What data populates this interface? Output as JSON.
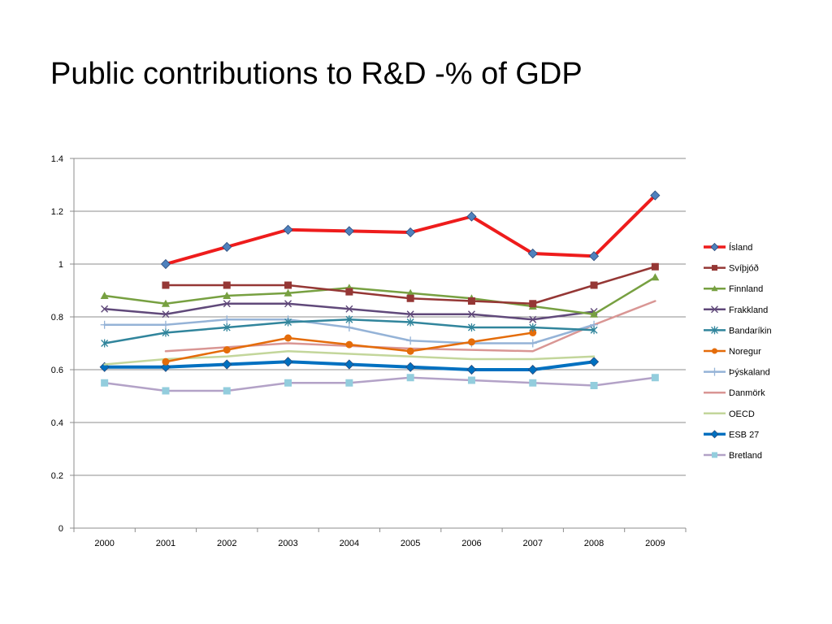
{
  "title": "Public contributions to R&D -% of GDP",
  "chart_data": {
    "type": "line",
    "title": "",
    "xlabel": "",
    "ylabel": "",
    "categories": [
      "2000",
      "2001",
      "2002",
      "2003",
      "2004",
      "2005",
      "2006",
      "2007",
      "2008",
      "2009"
    ],
    "ylim": [
      0,
      1.4
    ],
    "yticks": [
      "0",
      "0.2",
      "0.4",
      "0.6",
      "0.8",
      "1",
      "1.2",
      "1.4"
    ],
    "grid": "horizontal",
    "legend_position": "right",
    "series": [
      {
        "name": "Ísland",
        "color": "#ee1c1c",
        "marker": "diamond",
        "marker_color": "#4f81bd",
        "width": 4,
        "values": [
          null,
          1.0,
          1.065,
          1.13,
          1.125,
          1.12,
          1.18,
          1.04,
          1.03,
          1.26
        ]
      },
      {
        "name": "Svíþjóð",
        "color": "#953735",
        "marker": "square",
        "marker_color": "#953735",
        "width": 2.5,
        "values": [
          null,
          0.92,
          0.92,
          0.92,
          0.895,
          0.87,
          0.86,
          0.85,
          0.92,
          0.99
        ]
      },
      {
        "name": "Finnland",
        "color": "#77a041",
        "marker": "triangle",
        "marker_color": "#77a041",
        "width": 2.5,
        "values": [
          0.88,
          0.85,
          0.88,
          0.89,
          0.91,
          0.89,
          0.87,
          0.84,
          0.81,
          0.95
        ]
      },
      {
        "name": "Frakkland",
        "color": "#60497a",
        "marker": "x",
        "marker_color": "#60497a",
        "width": 2.5,
        "values": [
          0.83,
          0.81,
          0.85,
          0.85,
          0.83,
          0.81,
          0.81,
          0.79,
          0.82,
          null
        ]
      },
      {
        "name": "Bandaríkin",
        "color": "#31859c",
        "marker": "star",
        "marker_color": "#31859c",
        "width": 2.5,
        "values": [
          0.7,
          0.74,
          0.76,
          0.78,
          0.79,
          0.78,
          0.76,
          0.76,
          0.75,
          null
        ]
      },
      {
        "name": "Noregur",
        "color": "#e46c0a",
        "marker": "circle",
        "marker_color": "#e46c0a",
        "width": 2.5,
        "values": [
          null,
          0.63,
          0.675,
          0.72,
          0.695,
          0.67,
          0.705,
          0.74,
          null,
          null
        ]
      },
      {
        "name": "Þýskaland",
        "color": "#95b3d7",
        "marker": "plus",
        "marker_color": "#95b3d7",
        "width": 2.5,
        "values": [
          0.77,
          0.77,
          0.79,
          0.79,
          0.76,
          0.71,
          0.7,
          0.7,
          0.77,
          null
        ]
      },
      {
        "name": "Danmörk",
        "color": "#d99694",
        "marker": "none",
        "marker_color": "#d99694",
        "width": 2.5,
        "values": [
          null,
          0.67,
          0.685,
          0.7,
          0.69,
          0.68,
          0.675,
          0.67,
          0.77,
          0.86
        ]
      },
      {
        "name": "OECD",
        "color": "#c3d69b",
        "marker": "none",
        "marker_color": "#c3d69b",
        "width": 2.5,
        "values": [
          0.62,
          0.64,
          0.65,
          0.67,
          0.66,
          0.65,
          0.64,
          0.64,
          0.65,
          null
        ]
      },
      {
        "name": "ESB 27",
        "color": "#0070c0",
        "marker": "diamond",
        "marker_color": "#0070c0",
        "width": 4,
        "values": [
          0.61,
          0.61,
          0.62,
          0.63,
          0.62,
          0.61,
          0.6,
          0.6,
          0.63,
          null
        ]
      },
      {
        "name": "Bretland",
        "color": "#b3a2c7",
        "marker": "square",
        "marker_color": "#93cddd",
        "width": 2.5,
        "values": [
          0.55,
          0.52,
          0.52,
          0.55,
          0.55,
          0.57,
          0.56,
          0.55,
          0.54,
          0.57
        ]
      }
    ]
  }
}
